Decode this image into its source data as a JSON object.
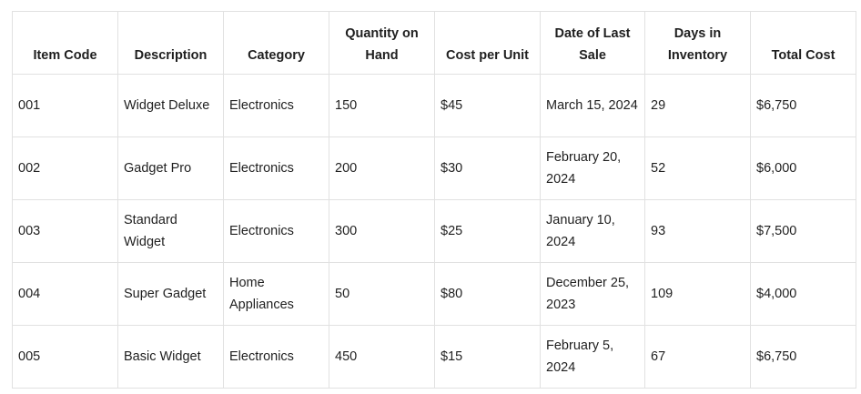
{
  "table": {
    "headers": [
      "Item Code",
      "Description",
      "Category",
      "Quantity on Hand",
      "Cost per Unit",
      "Date of Last Sale",
      "Days in Inventory",
      "Total Cost"
    ],
    "rows": [
      [
        "001",
        "Widget Deluxe",
        "Electronics",
        "150",
        "$45",
        "March 15, 2024",
        "29",
        "$6,750"
      ],
      [
        "002",
        "Gadget Pro",
        "Electronics",
        "200",
        "$30",
        "February 20, 2024",
        "52",
        "$6,000"
      ],
      [
        "003",
        "Standard Widget",
        "Electronics",
        "300",
        "$25",
        "January 10, 2024",
        "93",
        "$7,500"
      ],
      [
        "004",
        "Super Gadget",
        "Home Appliances",
        "50",
        "$80",
        "December 25, 2023",
        "109",
        "$4,000"
      ],
      [
        "005",
        "Basic Widget",
        "Electronics",
        "450",
        "$15",
        "February 5, 2024",
        "67",
        "$6,750"
      ]
    ]
  },
  "colors": {
    "border": "#e1e1e1",
    "text": "#1f1f1f",
    "background": "#ffffff"
  }
}
